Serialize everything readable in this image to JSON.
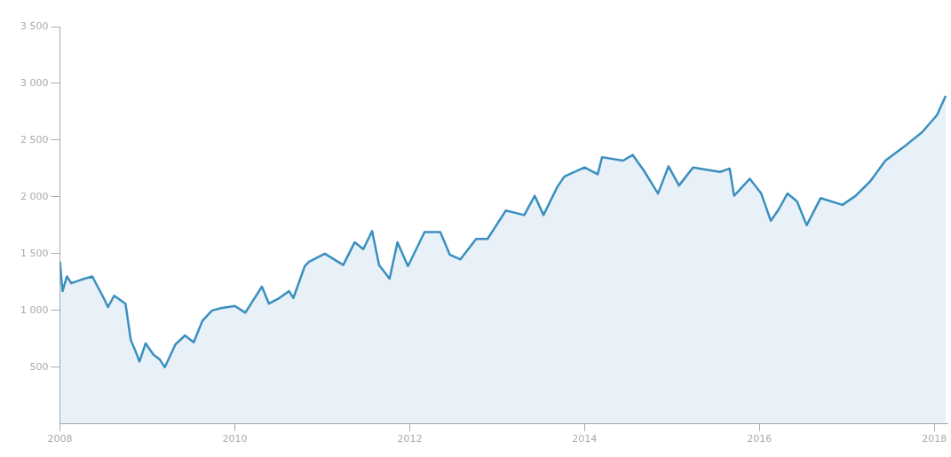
{
  "chart_data": {
    "type": "area",
    "xlim": [
      2008,
      2018.15
    ],
    "ylim": [
      0,
      3500
    ],
    "xticks": [
      2008,
      2010,
      2012,
      2014,
      2016,
      2018
    ],
    "yticks": [
      {
        "value": 500,
        "label": "500"
      },
      {
        "value": 1000,
        "label": "1 000"
      },
      {
        "value": 1500,
        "label": "1 500"
      },
      {
        "value": 2000,
        "label": "2 000"
      },
      {
        "value": 2500,
        "label": "2 500"
      },
      {
        "value": 3000,
        "label": "3 000"
      },
      {
        "value": 3500,
        "label": "3 500"
      }
    ],
    "grid": false,
    "legend": false,
    "series": [
      {
        "color": "#3a8fc0",
        "x": [
          2008.0,
          2008.03,
          2008.08,
          2008.13,
          2008.24,
          2008.37,
          2008.5,
          2008.55,
          2008.62,
          2008.75,
          2008.81,
          2008.86,
          2008.91,
          2008.98,
          2009.07,
          2009.14,
          2009.2,
          2009.32,
          2009.43,
          2009.53,
          2009.63,
          2009.74,
          2009.84,
          2010.0,
          2010.12,
          2010.31,
          2010.39,
          2010.51,
          2010.62,
          2010.67,
          2010.8,
          2010.85,
          2011.03,
          2011.24,
          2011.37,
          2011.47,
          2011.57,
          2011.65,
          2011.77,
          2011.86,
          2011.98,
          2012.17,
          2012.35,
          2012.46,
          2012.58,
          2012.76,
          2012.89,
          2013.1,
          2013.31,
          2013.43,
          2013.53,
          2013.69,
          2013.77,
          2014.0,
          2014.15,
          2014.2,
          2014.44,
          2014.55,
          2014.68,
          2014.84,
          2014.96,
          2015.08,
          2015.24,
          2015.55,
          2015.66,
          2015.71,
          2015.89,
          2016.02,
          2016.13,
          2016.22,
          2016.32,
          2016.43,
          2016.54,
          2016.7,
          2016.95,
          2017.1,
          2017.27,
          2017.44,
          2017.65,
          2017.86,
          2018.03,
          2018.13
        ],
        "values": [
          1430,
          1170,
          1300,
          1240,
          1270,
          1300,
          1110,
          1030,
          1130,
          1060,
          740,
          650,
          550,
          710,
          610,
          570,
          500,
          700,
          780,
          720,
          910,
          1000,
          1020,
          1040,
          980,
          1210,
          1060,
          1110,
          1170,
          1110,
          1390,
          1430,
          1500,
          1400,
          1600,
          1540,
          1700,
          1400,
          1280,
          1600,
          1390,
          1690,
          1690,
          1490,
          1450,
          1630,
          1630,
          1880,
          1840,
          2010,
          1840,
          2090,
          2180,
          2260,
          2200,
          2350,
          2320,
          2370,
          2230,
          2030,
          2270,
          2100,
          2260,
          2220,
          2250,
          2010,
          2160,
          2030,
          1790,
          1890,
          2030,
          1960,
          1750,
          1990,
          1930,
          2010,
          2140,
          2320,
          2440,
          2570,
          2720,
          2890
        ]
      }
    ]
  }
}
